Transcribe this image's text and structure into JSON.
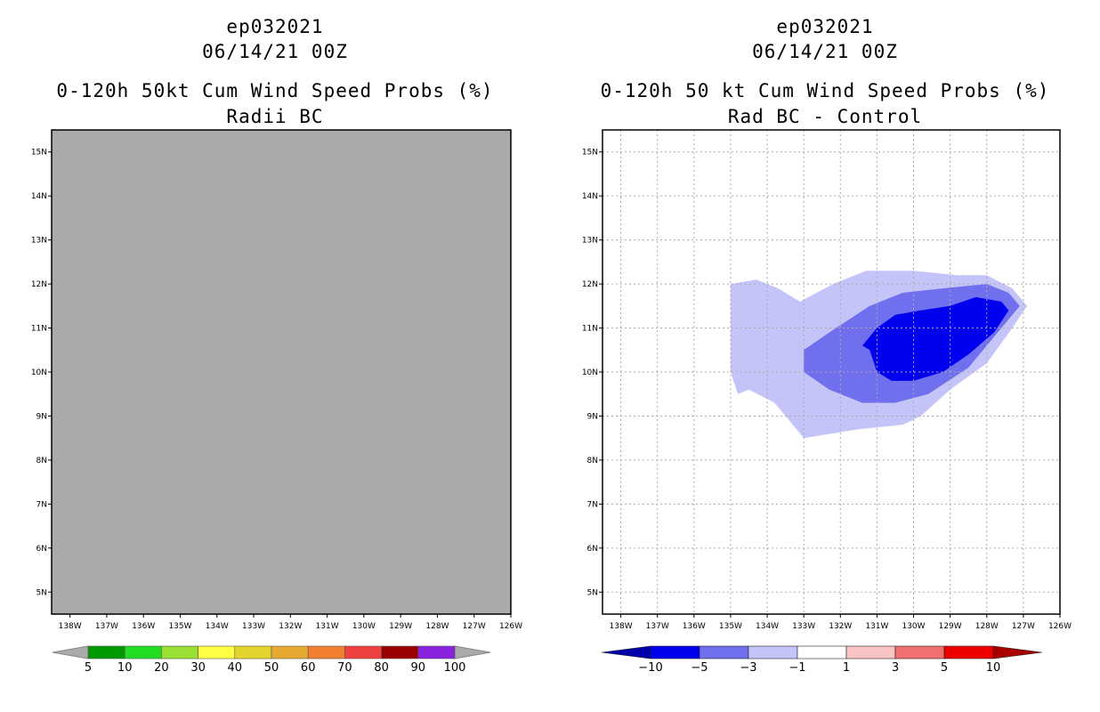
{
  "panels": {
    "left": {
      "storm_id": "ep032021",
      "datetime": "06/14/21 00Z",
      "title": "0-120h 50kt Cum Wind Speed Probs (%)",
      "subtitle": "Radii BC"
    },
    "right": {
      "storm_id": "ep032021",
      "datetime": "06/14/21 00Z",
      "title": "0-120h 50 kt Cum Wind Speed Probs (%)",
      "subtitle": "Rad BC - Control"
    }
  },
  "colors": {
    "map_fill_left": "#aaaaaa",
    "grid": "#aaaaaa"
  },
  "chart_data": [
    {
      "type": "heatmap",
      "title": "0-120h 50kt Cum Wind Speed Probs (%)",
      "subtitle": "Radii BC",
      "xlim": [
        -138.5,
        -126
      ],
      "ylim": [
        4.5,
        15.5
      ],
      "xticks": [
        "138W",
        "137W",
        "136W",
        "135W",
        "134W",
        "133W",
        "132W",
        "131W",
        "130W",
        "129W",
        "128W",
        "127W",
        "126W"
      ],
      "yticks": [
        "5N",
        "6N",
        "7N",
        "8N",
        "9N",
        "10N",
        "11N",
        "12N",
        "13N",
        "14N",
        "15N"
      ],
      "grid": false,
      "field_value": "below 5% everywhere (undefined/grey)",
      "colorbar": {
        "labels": [
          "5",
          "10",
          "20",
          "30",
          "40",
          "50",
          "60",
          "70",
          "80",
          "90",
          "100"
        ],
        "colors": [
          "#009900",
          "#22dd22",
          "#99e033",
          "#ffff44",
          "#e6d42e",
          "#e6aa33",
          "#f08030",
          "#f04040",
          "#990000",
          "#8822dd"
        ]
      }
    },
    {
      "type": "heatmap",
      "title": "0-120h 50 kt Cum Wind Speed Probs (%)",
      "subtitle": "Rad BC - Control",
      "xlim": [
        -138.5,
        -126
      ],
      "ylim": [
        4.5,
        15.5
      ],
      "xticks": [
        "138W",
        "137W",
        "136W",
        "135W",
        "134W",
        "133W",
        "132W",
        "131W",
        "130W",
        "129W",
        "128W",
        "127W",
        "126W"
      ],
      "yticks": [
        "5N",
        "6N",
        "7N",
        "8N",
        "9N",
        "10N",
        "11N",
        "12N",
        "13N",
        "14N",
        "15N"
      ],
      "grid": true,
      "colorbar": {
        "labels": [
          "-10",
          "-5",
          "-3",
          "-1",
          "1",
          "3",
          "5",
          "10"
        ],
        "colors": [
          "#0000aa",
          "#0000ee",
          "#7070ee",
          "#c4c4f8",
          "#ffffff",
          "#f8c4c4",
          "#f07070",
          "#ee0000",
          "#aa0000"
        ]
      },
      "contours": [
        {
          "level": "-3 to -1",
          "color": "#c4c4f8",
          "lonlat": [
            [
              -135.0,
              12.0
            ],
            [
              -134.3,
              12.1
            ],
            [
              -133.7,
              11.9
            ],
            [
              -133.1,
              11.6
            ],
            [
              -132.2,
              12.0
            ],
            [
              -131.3,
              12.3
            ],
            [
              -130.0,
              12.3
            ],
            [
              -128.8,
              12.2
            ],
            [
              -128.0,
              12.2
            ],
            [
              -127.3,
              11.9
            ],
            [
              -126.9,
              11.5
            ],
            [
              -127.3,
              11.0
            ],
            [
              -128.0,
              10.2
            ],
            [
              -129.0,
              9.6
            ],
            [
              -129.8,
              9.0
            ],
            [
              -130.3,
              8.8
            ],
            [
              -131.5,
              8.7
            ],
            [
              -133.0,
              8.5
            ],
            [
              -133.8,
              9.3
            ],
            [
              -134.5,
              9.6
            ],
            [
              -134.8,
              9.5
            ],
            [
              -135.0,
              10.0
            ],
            [
              -135.0,
              11.0
            ]
          ]
        },
        {
          "level": "-5 to -3",
          "color": "#7070ee",
          "lonlat": [
            [
              -133.0,
              10.5
            ],
            [
              -132.3,
              10.9
            ],
            [
              -131.2,
              11.5
            ],
            [
              -130.3,
              11.8
            ],
            [
              -129.2,
              11.9
            ],
            [
              -128.0,
              12.0
            ],
            [
              -127.4,
              11.8
            ],
            [
              -127.1,
              11.5
            ],
            [
              -127.6,
              11.0
            ],
            [
              -128.5,
              10.1
            ],
            [
              -129.6,
              9.5
            ],
            [
              -130.5,
              9.3
            ],
            [
              -131.4,
              9.3
            ],
            [
              -132.3,
              9.6
            ],
            [
              -133.0,
              10.0
            ]
          ]
        },
        {
          "level": "-10 to -5",
          "color": "#0000ee",
          "lonlat": [
            [
              -131.5,
              10.5
            ],
            [
              -131.0,
              11.0
            ],
            [
              -130.5,
              11.3
            ],
            [
              -129.8,
              11.4
            ],
            [
              -129.0,
              11.5
            ],
            [
              -128.3,
              11.7
            ],
            [
              -127.6,
              11.6
            ],
            [
              -127.4,
              11.4
            ],
            [
              -127.8,
              10.9
            ],
            [
              -128.5,
              10.4
            ],
            [
              -129.2,
              10.0
            ],
            [
              -130.0,
              9.8
            ],
            [
              -130.6,
              9.8
            ],
            [
              -131.0,
              10.0
            ],
            [
              -131.2,
              10.5
            ],
            [
              -131.4,
              10.6
            ]
          ]
        }
      ]
    }
  ]
}
